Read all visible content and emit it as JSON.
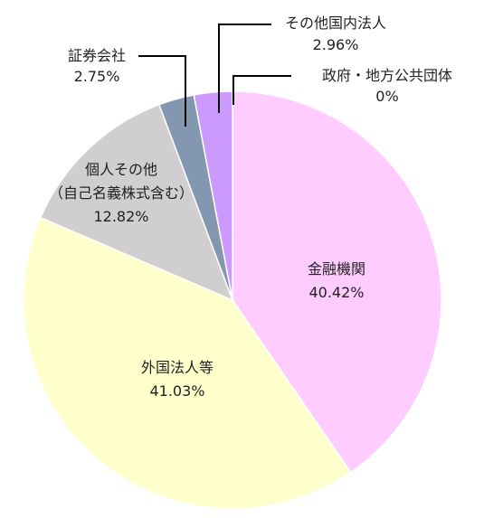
{
  "chart_data": {
    "type": "pie",
    "start_angle_deg": 0,
    "direction": "clockwise",
    "legend": "none",
    "slices": [
      {
        "name": "金融機関",
        "value": 40.42,
        "label": "40.42%",
        "color": "#FFCCFF"
      },
      {
        "name": "外国法人等",
        "value": 41.03,
        "label": "41.03%",
        "color": "#FFFFCC"
      },
      {
        "name": "個人その他（自己名義株式含む）",
        "name_lines": [
          "個人その他",
          "（自己名義株式含む）"
        ],
        "value": 12.82,
        "label": "12.82%",
        "color": "#D0CECE"
      },
      {
        "name": "証券会社",
        "value": 2.75,
        "label": "2.75%",
        "color": "#8497B0"
      },
      {
        "name": "その他国内法人",
        "value": 2.96,
        "label": "2.96%",
        "color": "#CC99FF"
      },
      {
        "name": "政府・地方公共団体",
        "value": 0,
        "label": "0%",
        "color": "#EEEEEE"
      }
    ]
  }
}
